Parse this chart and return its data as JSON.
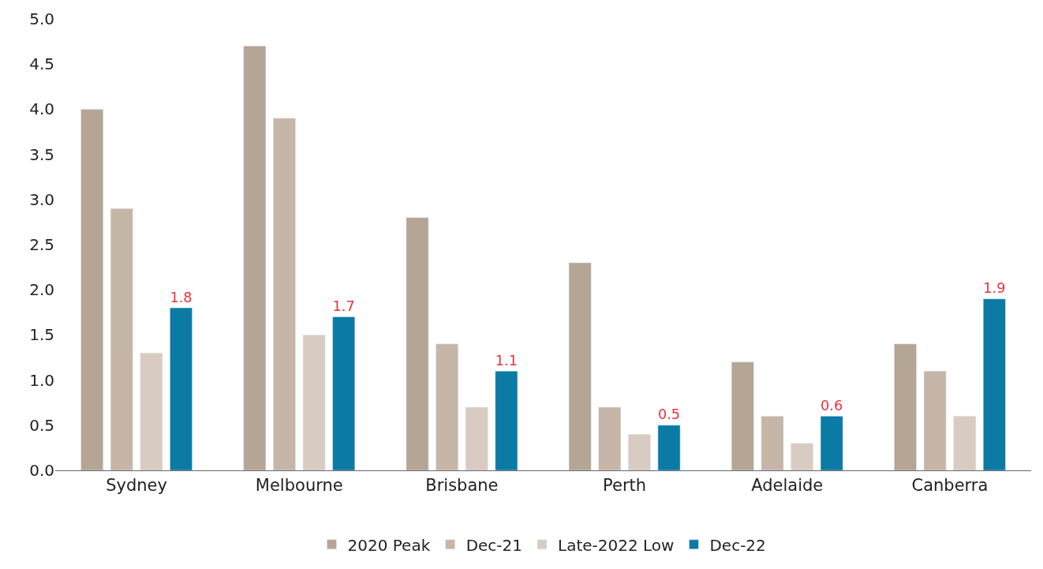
{
  "chart_data": {
    "type": "bar",
    "categories": [
      "Sydney",
      "Melbourne",
      "Brisbane",
      "Perth",
      "Adelaide",
      "Canberra"
    ],
    "series": [
      {
        "name": "2020 Peak",
        "color": "#b5a595",
        "values": [
          4.0,
          4.7,
          2.8,
          2.3,
          1.2,
          1.4
        ]
      },
      {
        "name": "Dec-21",
        "color": "#c6b6a7",
        "values": [
          2.9,
          3.9,
          1.4,
          0.7,
          0.6,
          1.1
        ]
      },
      {
        "name": "Late-2022 Low",
        "color": "#d8cbc1",
        "values": [
          1.3,
          1.5,
          0.7,
          0.4,
          0.3,
          0.6
        ]
      },
      {
        "name": "Dec-22",
        "color": "#0b7ba6",
        "values": [
          1.8,
          1.7,
          1.1,
          0.5,
          0.6,
          1.9
        ],
        "value_labels": [
          "1.8",
          "1.7",
          "1.1",
          "0.5",
          "0.6",
          "1.9"
        ]
      }
    ],
    "ylim": [
      0,
      5
    ],
    "yticks": [
      {
        "value": 0,
        "label": "0.0"
      },
      {
        "value": 0.5,
        "label": "0.5"
      },
      {
        "value": 1,
        "label": "1.0"
      },
      {
        "value": 1.5,
        "label": "1.5"
      },
      {
        "value": 2,
        "label": "2.0"
      },
      {
        "value": 2.5,
        "label": "2.5"
      },
      {
        "value": 3,
        "label": "3.0"
      },
      {
        "value": 3.5,
        "label": "3.5"
      },
      {
        "value": 4,
        "label": "4.0"
      },
      {
        "value": 4.5,
        "label": "4.5"
      },
      {
        "value": 5,
        "label": "5.0"
      }
    ],
    "legend": "bottom"
  }
}
